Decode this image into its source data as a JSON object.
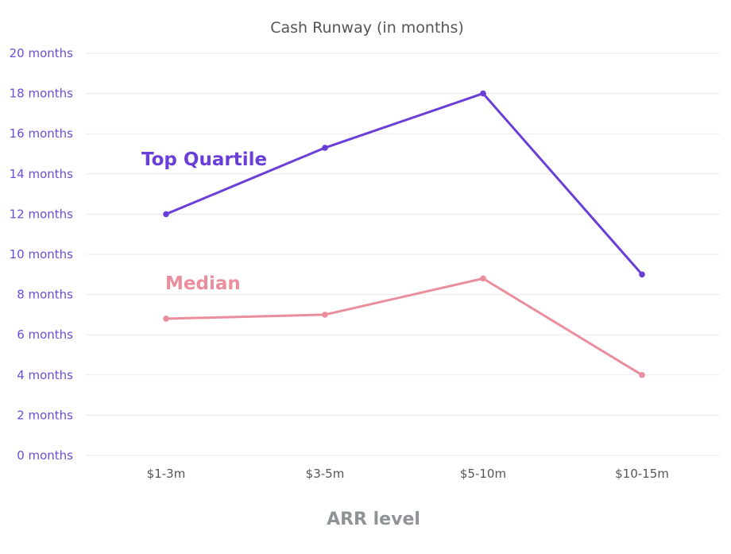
{
  "chart_data": {
    "type": "line",
    "title": "Cash Runway (in months)",
    "xlabel": "ARR level",
    "ylabel": "",
    "categories": [
      "$1-3m",
      "$3-5m",
      "$5-10m",
      "$10-15m"
    ],
    "ylim": [
      0,
      20
    ],
    "yticks": [
      "0 months",
      "2 months",
      "4 months",
      "6 months",
      "8 months",
      "10 months",
      "12 months",
      "14 months",
      "16 months",
      "18 months",
      "20 months"
    ],
    "grid": true,
    "series": [
      {
        "name": "Top Quartile",
        "color": "#6a3fd8",
        "values": [
          12,
          15.3,
          18,
          9
        ]
      },
      {
        "name": "Median",
        "color": "#ea8e9d",
        "values": [
          6.8,
          7,
          8.8,
          4
        ]
      }
    ]
  }
}
